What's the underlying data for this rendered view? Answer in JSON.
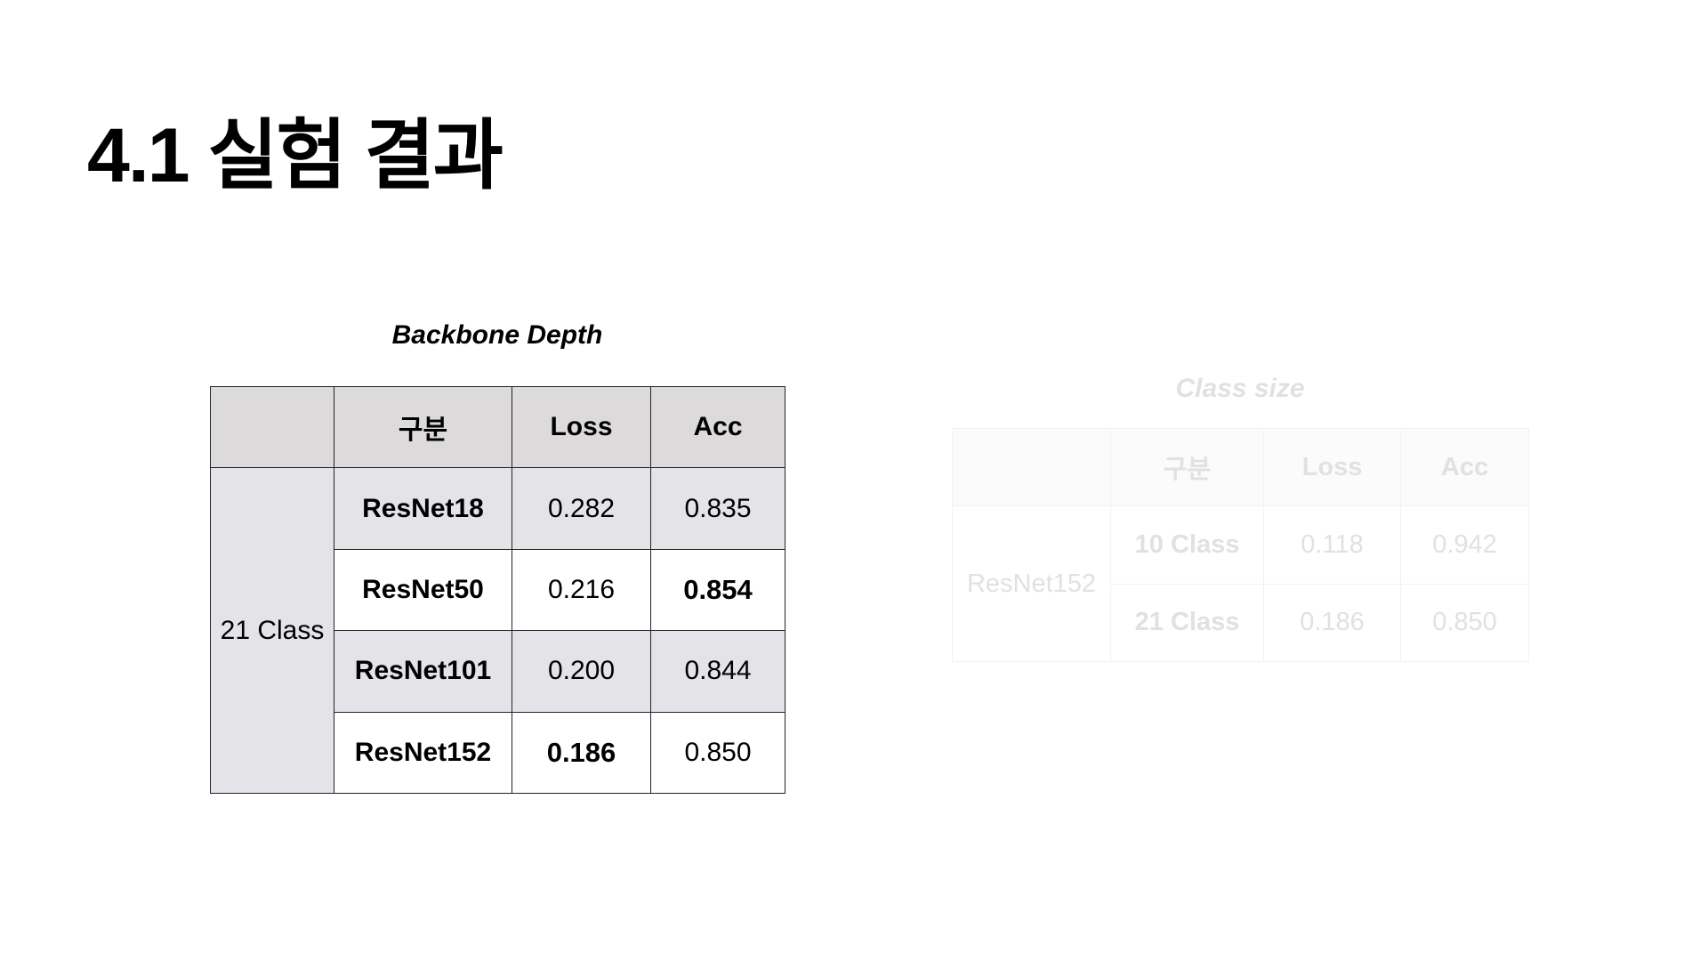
{
  "page": {
    "title": "4.1 실험 결과"
  },
  "depth_table": {
    "caption": "Backbone Depth",
    "headers": [
      "",
      "구분",
      "Loss",
      "Acc"
    ],
    "group_label": "21 Class",
    "rows": [
      {
        "model": "ResNet18",
        "loss": "0.282",
        "acc": "0.835"
      },
      {
        "model": "ResNet50",
        "loss": "0.216",
        "acc": "0.854"
      },
      {
        "model": "ResNet101",
        "loss": "0.200",
        "acc": "0.844"
      },
      {
        "model": "ResNet152",
        "loss": "0.186",
        "acc": "0.850"
      }
    ],
    "best": {
      "loss": "0.186",
      "acc": "0.854"
    }
  },
  "class_table": {
    "caption": "Class size",
    "headers": [
      "",
      "구분",
      "Loss",
      "Acc"
    ],
    "group_label": "ResNet152",
    "rows": [
      {
        "classes": "10 Class",
        "loss": "0.118",
        "acc": "0.942"
      },
      {
        "classes": "21 Class",
        "loss": "0.186",
        "acc": "0.850"
      }
    ]
  },
  "colors": {
    "header_bg": "#dcdada",
    "shaded_row_bg": "#e4e4e8",
    "faded_text": "#e1e1e1"
  }
}
